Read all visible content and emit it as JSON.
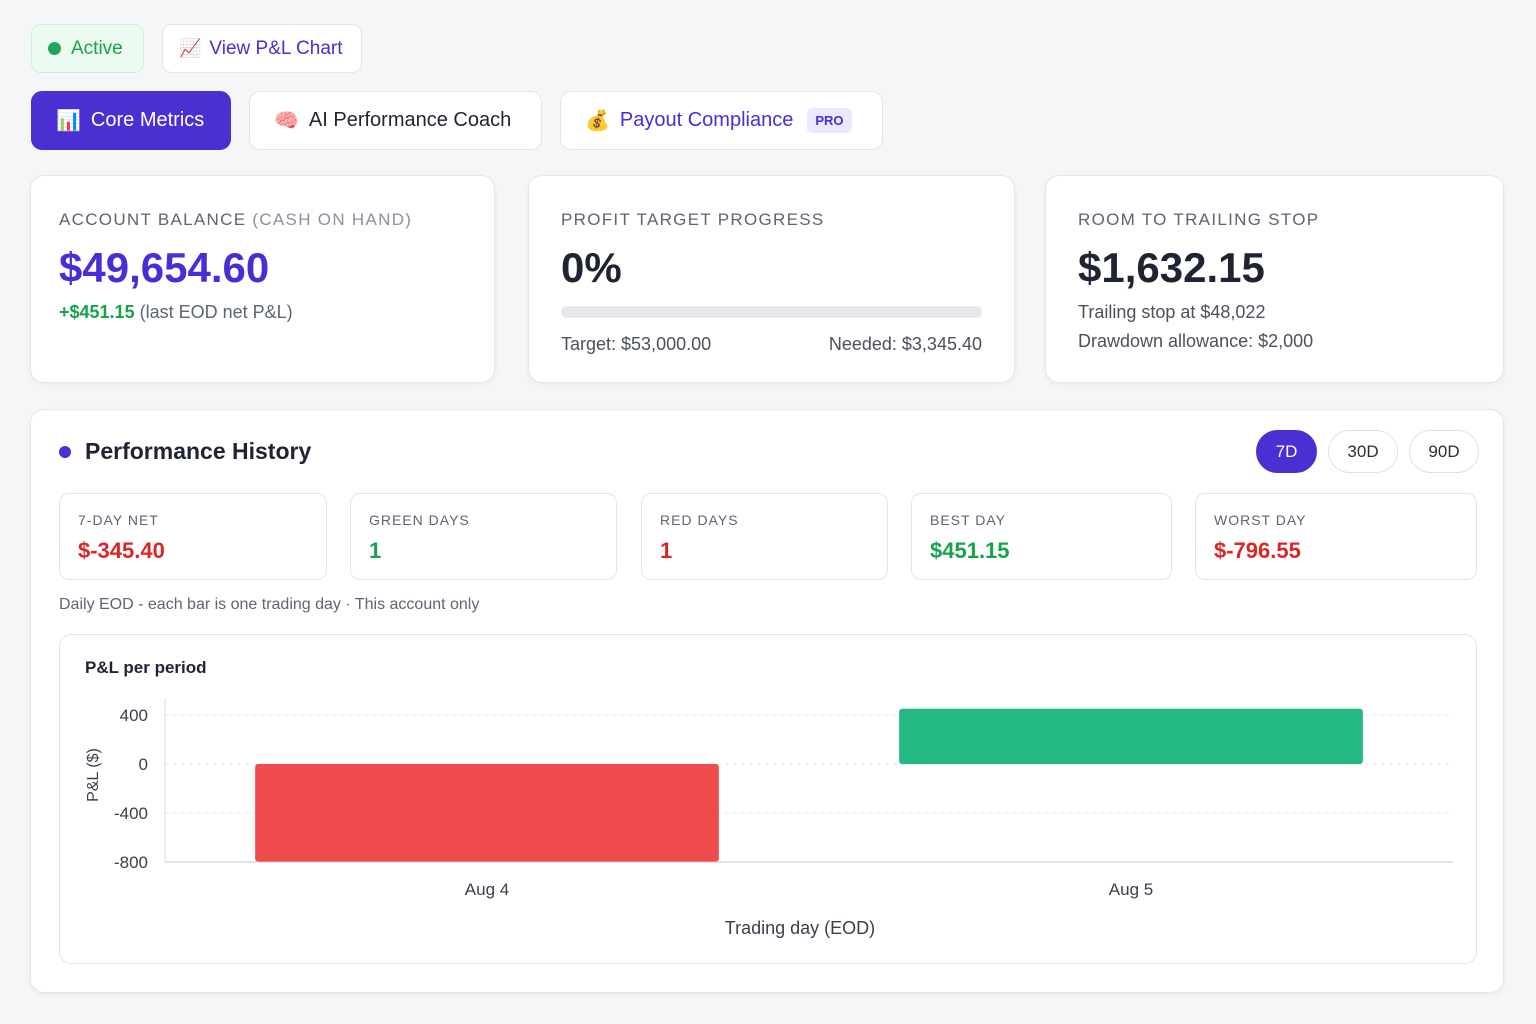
{
  "status": {
    "label": "Active",
    "color": "#16a34a"
  },
  "pl_chart_button": {
    "icon": "chart-increasing-icon",
    "label": "View P&L Chart"
  },
  "tabs": [
    {
      "icon": "bar-chart-icon",
      "label": "Core Metrics",
      "active": true
    },
    {
      "icon": "brain-icon",
      "label": "AI Performance Coach",
      "active": false
    },
    {
      "icon": "money-bag-icon",
      "label": "Payout Compliance",
      "badge": "PRO",
      "active": false
    }
  ],
  "account_balance": {
    "label": "Account Balance",
    "label_sub": "(Cash on Hand)",
    "value": "$49,654.60",
    "delta": "+$451.15",
    "delta_note": "(last EOD net P&L)"
  },
  "profit_target": {
    "label": "Profit Target Progress",
    "value": "0%",
    "progress": 0,
    "target": "Target: $53,000.00",
    "needed": "Needed: $3,345.40"
  },
  "trailing_stop": {
    "label": "Room to Trailing Stop",
    "value": "$1,632.15",
    "stop_line": "Trailing stop at $48,022",
    "allowance_line": "Drawdown allowance: $2,000"
  },
  "performance": {
    "title": "Performance History",
    "ranges": [
      {
        "label": "7D",
        "active": true
      },
      {
        "label": "30D",
        "active": false
      },
      {
        "label": "90D",
        "active": false
      }
    ],
    "stats": [
      {
        "label": "7-Day Net",
        "value": "$-345.40",
        "tone": "neg"
      },
      {
        "label": "Green Days",
        "value": "1",
        "tone": "pos"
      },
      {
        "label": "Red Days",
        "value": "1",
        "tone": "neg"
      },
      {
        "label": "Best Day",
        "value": "$451.15",
        "tone": "pos"
      },
      {
        "label": "Worst Day",
        "value": "$-796.55",
        "tone": "neg"
      }
    ],
    "note": "Daily EOD - each bar is one trading day · This account only"
  },
  "chart_data": {
    "type": "bar",
    "title": "P&L per period",
    "xlabel": "Trading day (EOD)",
    "ylabel": "P&L ($)",
    "categories": [
      "Aug 4",
      "Aug 5"
    ],
    "values": [
      -796.55,
      451.15
    ],
    "ylim": [
      -800,
      450
    ],
    "yticks": [
      400,
      0,
      -400,
      -800
    ],
    "grid": true,
    "colors": {
      "negative": "#ef4a4c",
      "positive": "#24b883"
    }
  }
}
